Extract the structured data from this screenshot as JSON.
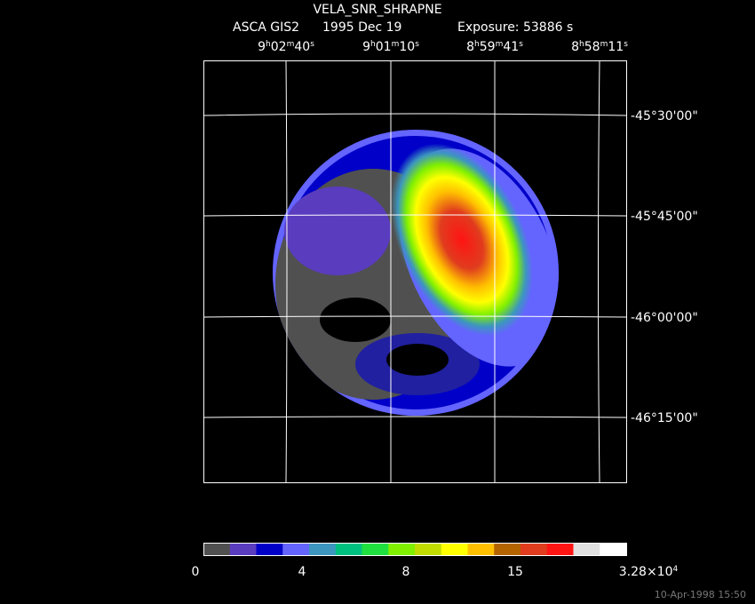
{
  "header": {
    "title": "VELA_SNR_SHRAPNE",
    "instrument": "ASCA GIS2",
    "date": "1995 Dec 19",
    "exposure": "Exposure: 53886 s"
  },
  "ra_labels": [
    {
      "parts": [
        "9",
        "h",
        "02",
        "m",
        "40",
        "s"
      ]
    },
    {
      "parts": [
        "9",
        "h",
        "01",
        "m",
        "10",
        "s"
      ]
    },
    {
      "parts": [
        "8",
        "h",
        "59",
        "m",
        "41",
        "s"
      ]
    },
    {
      "parts": [
        "8",
        "h",
        "58",
        "m",
        "11",
        "s"
      ]
    }
  ],
  "dec_labels": [
    "-45°30'00\"",
    "-45°45'00\"",
    "-46°00'00\"",
    "-46°15'00\""
  ],
  "colorbar": {
    "colors": [
      "#505050",
      "#5a3cbe",
      "#0000c8",
      "#6464ff",
      "#3c96be",
      "#00c080",
      "#20e040",
      "#80f000",
      "#c0dc00",
      "#ffff00",
      "#ffc000",
      "#b46400",
      "#e03c1e",
      "#ff1414",
      "#e0e0e0",
      "#ffffff"
    ],
    "labels": [
      {
        "parts": [
          "0"
        ]
      },
      {
        "parts": [
          "4"
        ]
      },
      {
        "parts": [
          "8"
        ]
      },
      {
        "parts": [
          "15"
        ]
      },
      {
        "parts": [
          "3.28×10",
          "4"
        ]
      }
    ]
  },
  "timestamp": "10-Apr-1998 15:50"
}
